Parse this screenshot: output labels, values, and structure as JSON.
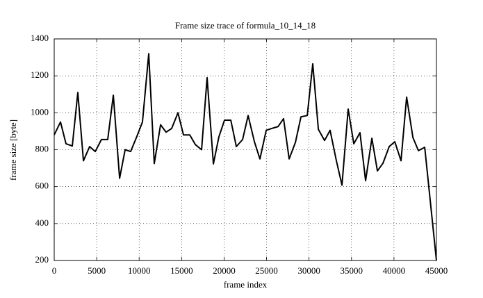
{
  "chart_data": {
    "type": "line",
    "title": "Frame size trace of formula_10_14_18",
    "x_label": "frame index",
    "y_label": "frame size [byte]",
    "x": [
      0,
      740,
      1390,
      2130,
      2780,
      3440,
      4170,
      4830,
      5560,
      6300,
      6960,
      7700,
      8350,
      9000,
      9740,
      10390,
      11130,
      11780,
      12520,
      13170,
      13830,
      14570,
      15220,
      15960,
      16610,
      17350,
      18000,
      18740,
      19390,
      20050,
      20790,
      21440,
      22180,
      22830,
      23570,
      24220,
      24960,
      25610,
      26350,
      27000,
      27660,
      28400,
      29050,
      29790,
      30440,
      31100,
      31830,
      32480,
      33220,
      33880,
      34610,
      35270,
      36000,
      36660,
      37400,
      38050,
      38710,
      39440,
      40100,
      40830,
      41490,
      42230,
      42880,
      43620,
      45000
    ],
    "series": [
      {
        "name": "formula_10_14_18",
        "color": "#000000",
        "values": [
          880,
          950,
          832,
          820,
          1110,
          740,
          817,
          790,
          855,
          855,
          1095,
          645,
          800,
          790,
          873,
          950,
          1320,
          725,
          935,
          895,
          915,
          1000,
          880,
          880,
          828,
          800,
          1190,
          723,
          870,
          960,
          960,
          817,
          855,
          985,
          843,
          750,
          905,
          915,
          925,
          968,
          750,
          840,
          978,
          985,
          1265,
          910,
          850,
          905,
          740,
          608,
          1020,
          832,
          892,
          632,
          862,
          685,
          727,
          817,
          843,
          740,
          1085,
          866,
          795,
          813,
          200
        ]
      }
    ],
    "xlim": [
      0,
      45000
    ],
    "xticks": [
      0,
      5000,
      10000,
      15000,
      20000,
      25000,
      30000,
      35000,
      40000,
      45000
    ],
    "ylim": [
      200,
      1400
    ],
    "yticks": [
      200,
      400,
      600,
      800,
      1000,
      1200,
      1400
    ],
    "grid": true
  }
}
